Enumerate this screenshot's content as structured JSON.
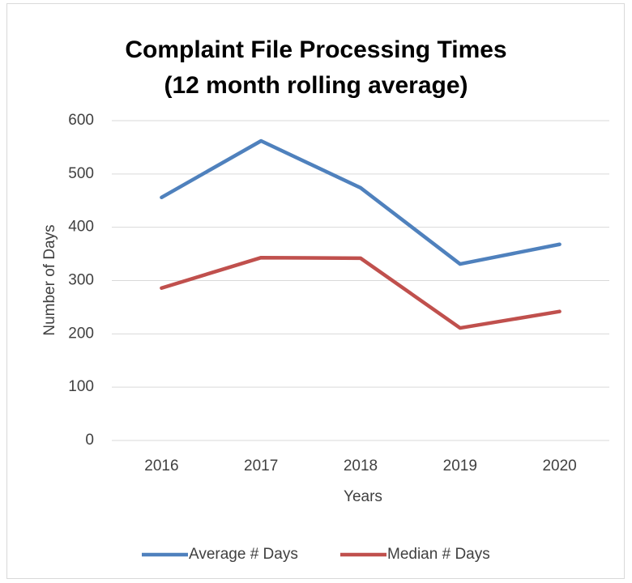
{
  "chart_data": {
    "type": "line",
    "title": "Complaint File Processing Times (12 month rolling average)",
    "x_label": "Years",
    "y_label": "Number of Days",
    "categories": [
      "2016",
      "2017",
      "2018",
      "2019",
      "2020"
    ],
    "series": [
      {
        "name": "Average # Days",
        "color": "#4f81bd",
        "values": [
          456,
          562,
          474,
          331,
          368
        ]
      },
      {
        "name": "Median # Days",
        "color": "#c0504d",
        "values": [
          286,
          343,
          342,
          211,
          242
        ]
      }
    ],
    "ylim": [
      0,
      600
    ],
    "yticks": [
      0,
      100,
      200,
      300,
      400,
      500,
      600
    ],
    "grid": true,
    "legend": "bottom"
  }
}
